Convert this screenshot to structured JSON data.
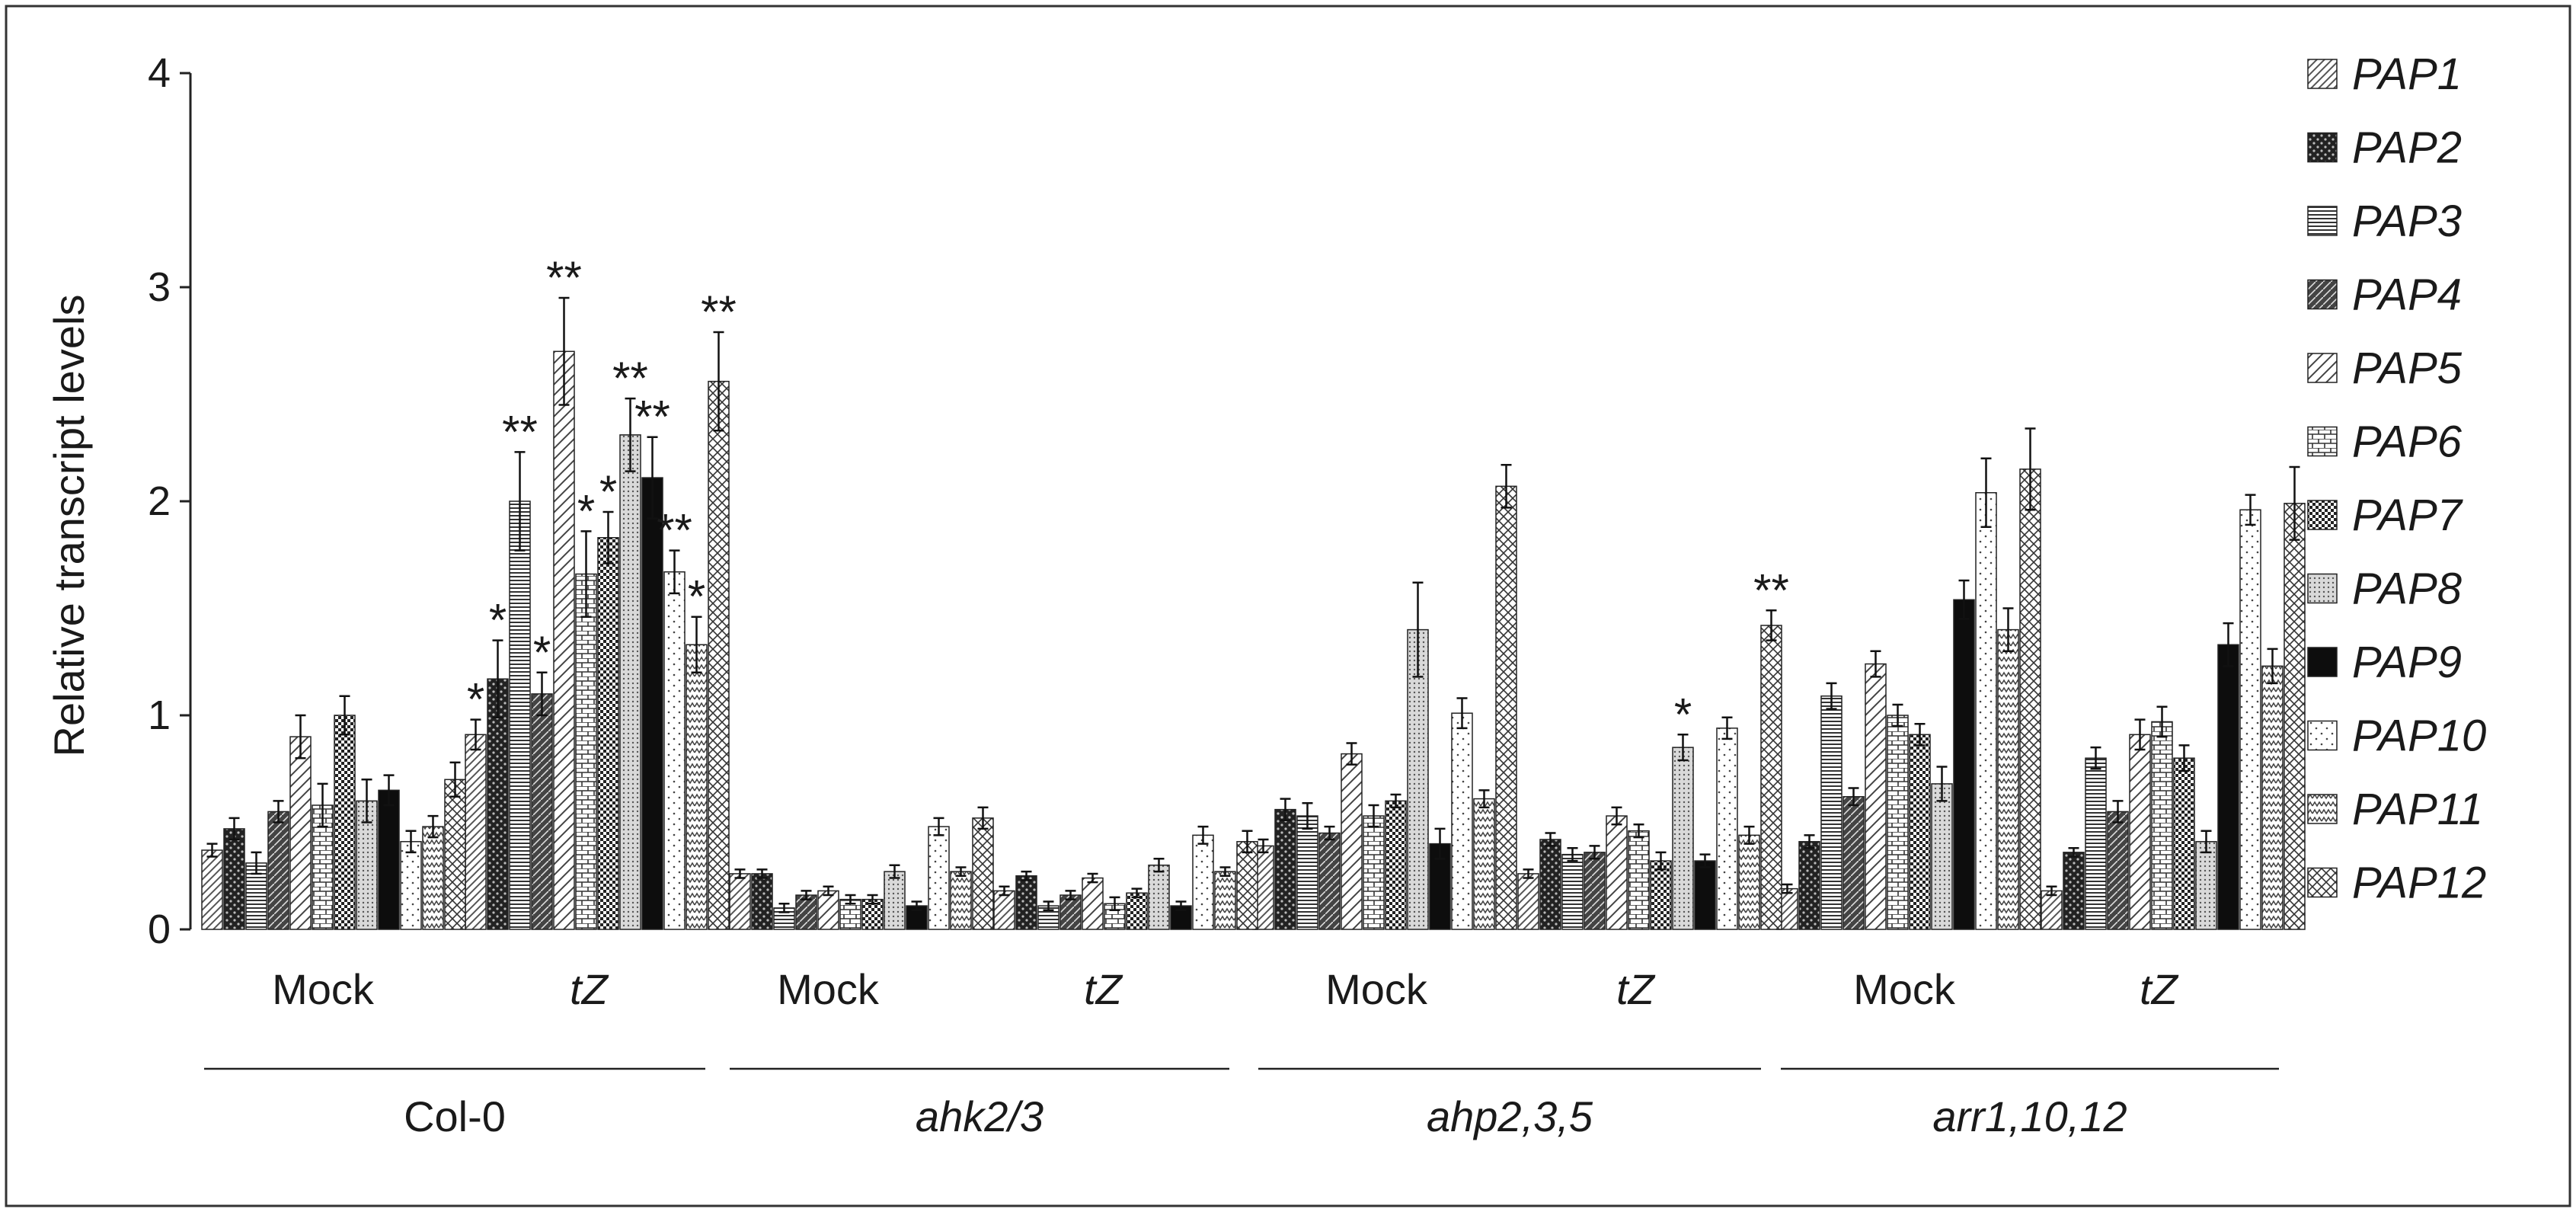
{
  "chart_data": {
    "type": "bar",
    "title": "",
    "xlabel": "",
    "ylabel": "Relative transcript levels",
    "ylim": [
      0,
      4
    ],
    "yticks": [
      "0",
      "1",
      "2",
      "3",
      "4"
    ],
    "genotypes": [
      {
        "name": "Col-0",
        "italic": false
      },
      {
        "name": "ahk2/3",
        "italic": true
      },
      {
        "name": "ahp2,3,5",
        "italic": true
      },
      {
        "name": "arr1,10,12",
        "italic": true
      }
    ],
    "treatments": [
      {
        "name": "Mock",
        "italic": false
      },
      {
        "name": "tZ",
        "italic": true
      }
    ],
    "categories": [
      "Col-0 Mock",
      "Col-0 tZ",
      "ahk2/3 Mock",
      "ahk2/3 tZ",
      "ahp2,3,5 Mock",
      "ahp2,3,5 tZ",
      "arr1,10,12 Mock",
      "arr1,10,12 tZ"
    ],
    "legend_position": "right",
    "series": [
      {
        "name": "PAP1",
        "pattern": "diag-fine",
        "values": [
          0.37,
          0.91,
          0.26,
          0.18,
          0.39,
          0.26,
          0.19,
          0.18
        ],
        "errors": [
          0.03,
          0.07,
          0.02,
          0.02,
          0.03,
          0.02,
          0.02,
          0.02
        ],
        "sig": [
          "",
          "*",
          "",
          "",
          "",
          "",
          "",
          ""
        ]
      },
      {
        "name": "PAP2",
        "pattern": "dark-dots",
        "values": [
          0.47,
          1.17,
          0.26,
          0.25,
          0.56,
          0.42,
          0.41,
          0.36
        ],
        "errors": [
          0.05,
          0.18,
          0.02,
          0.02,
          0.05,
          0.03,
          0.03,
          0.02
        ],
        "sig": [
          "",
          "*",
          "",
          "",
          "",
          "",
          "",
          ""
        ]
      },
      {
        "name": "PAP3",
        "pattern": "horizontal",
        "values": [
          0.31,
          2.0,
          0.1,
          0.11,
          0.53,
          0.35,
          1.09,
          0.8
        ],
        "errors": [
          0.05,
          0.23,
          0.02,
          0.02,
          0.06,
          0.03,
          0.06,
          0.05
        ],
        "sig": [
          "",
          "**",
          "",
          "",
          "",
          "",
          "",
          ""
        ]
      },
      {
        "name": "PAP4",
        "pattern": "dark-diag",
        "values": [
          0.55,
          1.1,
          0.16,
          0.16,
          0.45,
          0.36,
          0.62,
          0.55
        ],
        "errors": [
          0.05,
          0.1,
          0.02,
          0.02,
          0.03,
          0.03,
          0.04,
          0.05
        ],
        "sig": [
          "",
          "*",
          "",
          "",
          "",
          "",
          "",
          ""
        ]
      },
      {
        "name": "PAP5",
        "pattern": "diag-wide",
        "values": [
          0.9,
          2.7,
          0.18,
          0.24,
          0.82,
          0.53,
          1.24,
          0.91
        ],
        "errors": [
          0.1,
          0.25,
          0.02,
          0.02,
          0.05,
          0.04,
          0.06,
          0.07
        ],
        "sig": [
          "",
          "**",
          "",
          "",
          "",
          "",
          "",
          ""
        ]
      },
      {
        "name": "PAP6",
        "pattern": "brick",
        "values": [
          0.58,
          1.66,
          0.14,
          0.12,
          0.53,
          0.46,
          1.0,
          0.97
        ],
        "errors": [
          0.1,
          0.2,
          0.02,
          0.03,
          0.05,
          0.03,
          0.05,
          0.07
        ],
        "sig": [
          "",
          "*",
          "",
          "",
          "",
          "",
          "",
          ""
        ]
      },
      {
        "name": "PAP7",
        "pattern": "checker",
        "values": [
          1.0,
          1.83,
          0.14,
          0.17,
          0.6,
          0.32,
          0.91,
          0.8
        ],
        "errors": [
          0.09,
          0.12,
          0.02,
          0.02,
          0.03,
          0.04,
          0.05,
          0.06
        ],
        "sig": [
          "",
          "*",
          "",
          "",
          "",
          "",
          "",
          ""
        ]
      },
      {
        "name": "PAP8",
        "pattern": "fine-dots",
        "values": [
          0.6,
          2.31,
          0.27,
          0.3,
          1.4,
          0.85,
          0.68,
          0.41
        ],
        "errors": [
          0.1,
          0.17,
          0.03,
          0.03,
          0.22,
          0.06,
          0.08,
          0.05
        ],
        "sig": [
          "",
          "**",
          "",
          "",
          "",
          "*",
          "",
          ""
        ]
      },
      {
        "name": "PAP9",
        "pattern": "solid-black",
        "values": [
          0.65,
          2.11,
          0.11,
          0.11,
          0.4,
          0.32,
          1.54,
          1.33
        ],
        "errors": [
          0.07,
          0.19,
          0.02,
          0.02,
          0.07,
          0.03,
          0.09,
          0.1
        ],
        "sig": [
          "",
          "**",
          "",
          "",
          "",
          "",
          "",
          ""
        ]
      },
      {
        "name": "PAP10",
        "pattern": "sparse-dots",
        "values": [
          0.41,
          1.67,
          0.48,
          0.44,
          1.01,
          0.94,
          2.04,
          1.96
        ],
        "errors": [
          0.05,
          0.1,
          0.04,
          0.04,
          0.07,
          0.05,
          0.16,
          0.07
        ],
        "sig": [
          "",
          "**",
          "",
          "",
          "",
          "",
          "",
          ""
        ]
      },
      {
        "name": "PAP11",
        "pattern": "zigzag",
        "values": [
          0.48,
          1.33,
          0.27,
          0.27,
          0.61,
          0.44,
          1.4,
          1.23
        ],
        "errors": [
          0.05,
          0.13,
          0.02,
          0.02,
          0.04,
          0.04,
          0.1,
          0.08
        ],
        "sig": [
          "",
          "*",
          "",
          "",
          "",
          "",
          "",
          ""
        ]
      },
      {
        "name": "PAP12",
        "pattern": "crosshatch",
        "values": [
          0.7,
          2.56,
          0.52,
          0.41,
          2.07,
          1.42,
          2.15,
          1.99
        ],
        "errors": [
          0.08,
          0.23,
          0.05,
          0.05,
          0.1,
          0.07,
          0.19,
          0.17
        ],
        "sig": [
          "",
          "**",
          "",
          "",
          "",
          "**",
          "",
          ""
        ]
      }
    ]
  }
}
